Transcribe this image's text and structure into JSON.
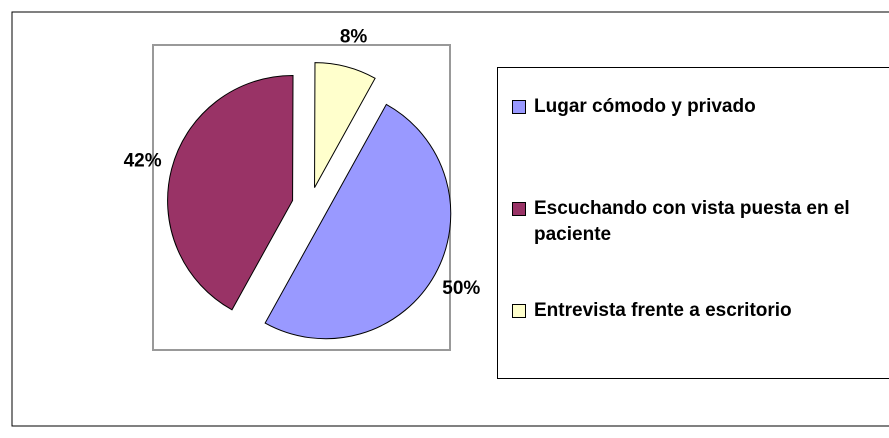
{
  "chart_data": {
    "type": "pie",
    "categories": [
      "Lugar cómodo y privado",
      "Escuchando con vista puesta en el paciente",
      "Entrevista frente a escritorio"
    ],
    "values": [
      50,
      42,
      8
    ],
    "value_labels": [
      "50%",
      "42%",
      "8%"
    ],
    "colors": [
      "#9999ff",
      "#993366",
      "#ffffcc"
    ],
    "legend": "right"
  }
}
